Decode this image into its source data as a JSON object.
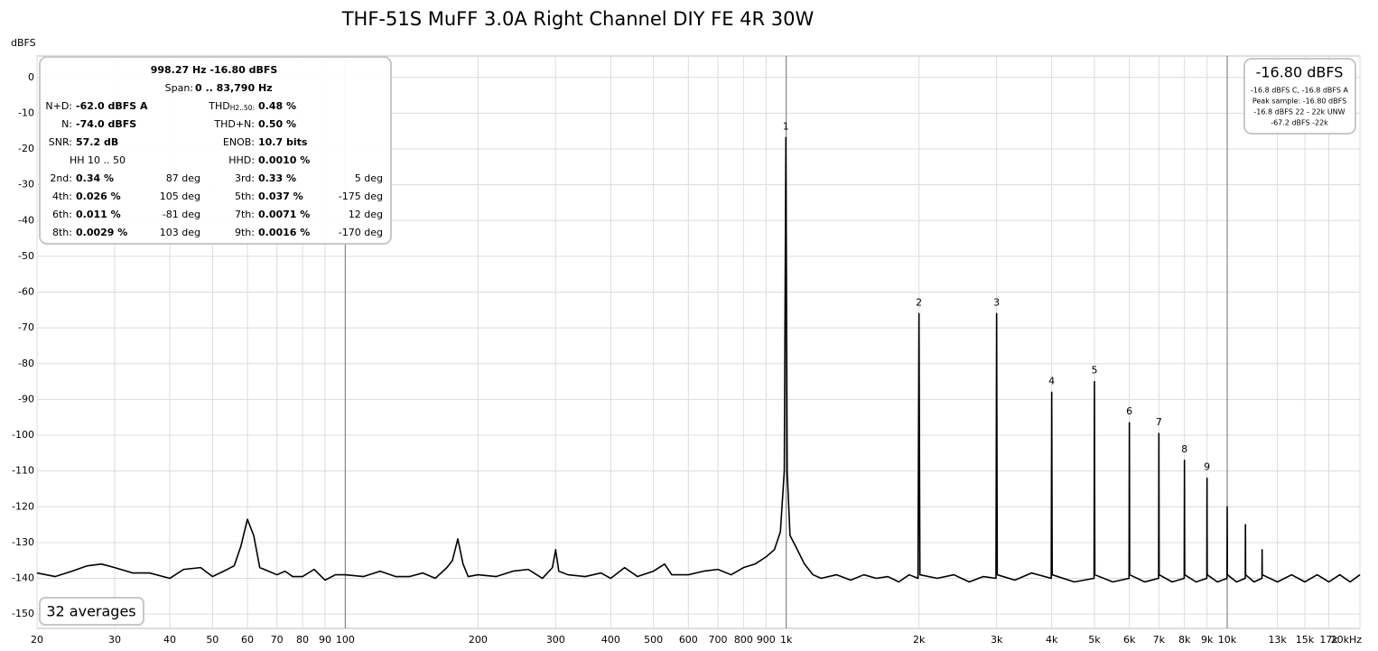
{
  "chart_data": {
    "type": "line",
    "title": "THF-51S MuFF 3.0A Right Channel DIY FE 4R 30W",
    "y_axis_label": "dBFS",
    "x_scale": "log",
    "grid": true,
    "xlim": [
      20,
      20000
    ],
    "ylim": [
      -154,
      6
    ],
    "xticks": [
      20,
      30,
      40,
      50,
      60,
      70,
      80,
      90,
      100,
      200,
      300,
      400,
      500,
      600,
      700,
      800,
      900,
      {
        "value": 1000,
        "label": "1k"
      },
      {
        "value": 2000,
        "label": "2k"
      },
      {
        "value": 3000,
        "label": "3k"
      },
      {
        "value": 4000,
        "label": "4k"
      },
      {
        "value": 5000,
        "label": "5k"
      },
      {
        "value": 6000,
        "label": "6k"
      },
      {
        "value": 7000,
        "label": "7k"
      },
      {
        "value": 8000,
        "label": "8k"
      },
      {
        "value": 9000,
        "label": "9k"
      },
      {
        "value": 10000,
        "label": "10k"
      },
      {
        "value": 13000,
        "label": "13k"
      },
      {
        "value": 15000,
        "label": "15k"
      },
      {
        "value": 17000,
        "label": "17k"
      },
      {
        "value": 20000,
        "label": "20kHz"
      }
    ],
    "yticks": [
      0,
      -10,
      -20,
      -30,
      -40,
      -50,
      -60,
      -70,
      -80,
      -90,
      -100,
      -110,
      -120,
      -130,
      -140,
      -150
    ],
    "series": [
      {
        "name": "Spectrum",
        "color": "#000000",
        "x": [
          20,
          22,
          24,
          26,
          28,
          30,
          33,
          36,
          40,
          43,
          47,
          50,
          53,
          56,
          58,
          60,
          62,
          64,
          67,
          70,
          73,
          76,
          80,
          85,
          90,
          95,
          100,
          110,
          120,
          130,
          140,
          150,
          160,
          170,
          175,
          180,
          185,
          190,
          200,
          220,
          240,
          260,
          280,
          295,
          300,
          305,
          320,
          350,
          380,
          400,
          430,
          460,
          500,
          530,
          550,
          600,
          650,
          700,
          750,
          800,
          850,
          900,
          940,
          970,
          990,
          998.27,
          1005,
          1020,
          1050,
          1100,
          1150,
          1200,
          1300,
          1400,
          1500,
          1600,
          1700,
          1800,
          1900,
          1990,
          2000,
          2010,
          2200,
          2400,
          2600,
          2800,
          2990,
          3000,
          3010,
          3300,
          3600,
          3990,
          4000,
          4010,
          4500,
          4990,
          5000,
          5010,
          5500,
          5990,
          6000,
          6010,
          6500,
          6990,
          7000,
          7010,
          7500,
          7990,
          8000,
          8010,
          8500,
          8990,
          9000,
          9010,
          9500,
          9990,
          10000,
          10010,
          10500,
          10990,
          11000,
          11010,
          11500,
          11990,
          12000,
          12010,
          13000,
          14000,
          15000,
          16000,
          17000,
          18000,
          19000,
          20000
        ],
        "values": [
          -138.5,
          -139.5,
          -138,
          -136.5,
          -136,
          -137,
          -138.5,
          -138.5,
          -140,
          -137.5,
          -137,
          -139.5,
          -138,
          -136.5,
          -131,
          -123.5,
          -128,
          -137,
          -138,
          -139,
          -138,
          -139.5,
          -139.5,
          -137.5,
          -140.5,
          -139,
          -139,
          -139.5,
          -138,
          -139.5,
          -139.5,
          -138.5,
          -140,
          -137,
          -135,
          -129,
          -136,
          -139.5,
          -139,
          -139.5,
          -138,
          -137.5,
          -140,
          -137,
          -132,
          -138,
          -139,
          -139.5,
          -138.5,
          -140,
          -137,
          -139.5,
          -138,
          -136,
          -139,
          -139,
          -138,
          -137.5,
          -139,
          -137,
          -136,
          -134,
          -132,
          -127,
          -110,
          -16.8,
          -110,
          -128,
          -131,
          -136,
          -139,
          -140,
          -139,
          -140.5,
          -139,
          -140,
          -139.5,
          -141,
          -139,
          -140,
          -66,
          -139,
          -140,
          -139,
          -141,
          -139.5,
          -140,
          -66,
          -139,
          -140.5,
          -138.5,
          -140,
          -88,
          -139,
          -141,
          -140,
          -85,
          -139,
          -141,
          -140,
          -96.5,
          -139,
          -141,
          -140,
          -99.5,
          -139,
          -141,
          -140,
          -107,
          -139,
          -141,
          -140,
          -112,
          -139,
          -141,
          -140,
          -120,
          -139,
          -141,
          -140,
          -125,
          -139,
          -141,
          -140,
          -132,
          -139,
          -141,
          -139,
          -141,
          -139,
          -141,
          -139,
          -141,
          -139
        ]
      }
    ],
    "peak_labels": [
      {
        "text": "1",
        "x": 998.27,
        "y": -16.8
      },
      {
        "text": "2",
        "x": 2000,
        "y": -66
      },
      {
        "text": "3",
        "x": 3000,
        "y": -66
      },
      {
        "text": "4",
        "x": 4000,
        "y": -88
      },
      {
        "text": "5",
        "x": 5000,
        "y": -85
      },
      {
        "text": "6",
        "x": 6000,
        "y": -96.5
      },
      {
        "text": "7",
        "x": 7000,
        "y": -99.5
      },
      {
        "text": "8",
        "x": 8000,
        "y": -107
      },
      {
        "text": "9",
        "x": 9000,
        "y": -112
      }
    ],
    "info_panel": {
      "frequency_level": "998.27 Hz  -16.80 dBFS",
      "span": {
        "label": "Span:",
        "value": "0 .. 83,790 Hz"
      },
      "metrics": [
        [
          {
            "label": "N+D:",
            "value": "-62.0 dBFS A"
          },
          {
            "label": "THD",
            "sub": "H2..50:",
            "value": "0.48 %"
          }
        ],
        [
          {
            "label": "N:",
            "value": "-74.0 dBFS"
          },
          {
            "label": "THD+N:",
            "value": "0.50 %"
          }
        ],
        [
          {
            "label": "SNR:",
            "value": "57.2 dB"
          },
          {
            "label": "ENOB:",
            "value": "10.7 bits"
          }
        ]
      ],
      "hh_range": "HH 10 .. 50",
      "hhd": {
        "label": "HHD:",
        "value": "0.0010 %"
      },
      "harmonics": [
        [
          {
            "label": "2nd:",
            "value": "0.34 %",
            "phase": "87 deg"
          },
          {
            "label": "3rd:",
            "value": "0.33 %",
            "phase": "5 deg"
          }
        ],
        [
          {
            "label": "4th:",
            "value": "0.026 %",
            "phase": "105 deg"
          },
          {
            "label": "5th:",
            "value": "0.037 %",
            "phase": "-175 deg"
          }
        ],
        [
          {
            "label": "6th:",
            "value": "0.011 %",
            "phase": "-81 deg"
          },
          {
            "label": "7th:",
            "value": "0.0071 %",
            "phase": "12 deg"
          }
        ],
        [
          {
            "label": "8th:",
            "value": "0.0029 %",
            "phase": "103 deg"
          },
          {
            "label": "9th:",
            "value": "0.0016 %",
            "phase": "-170 deg"
          }
        ]
      ]
    },
    "level_panel": {
      "level": "-16.80 dBFS",
      "lines": [
        "-16.8 dBFS C, -16.8 dBFS A",
        "Peak sample: -16.80 dBFS",
        "-16.8 dBFS 22 - 22k UNW",
        "-67.2 dBFS -22k"
      ]
    },
    "averages": "32 averages"
  }
}
